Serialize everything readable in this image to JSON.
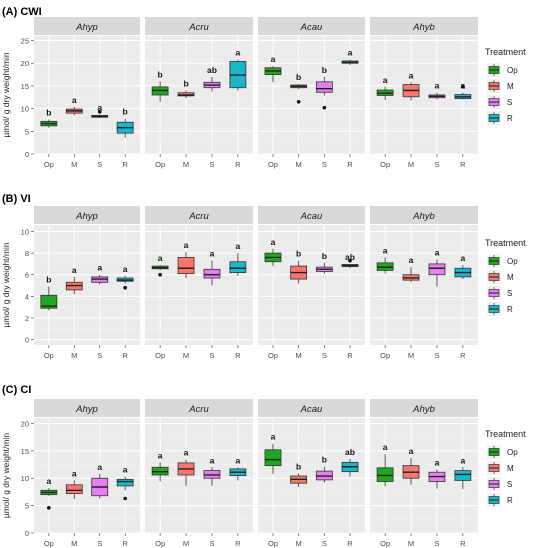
{
  "colors": {
    "panel_bg": "#ebebeb",
    "grid_major": "#ffffff",
    "strip_bg": "#d9d9d9",
    "Op": "#1fa81f",
    "M": "#f8766d",
    "S": "#e77ff0",
    "R": "#18b7c9"
  },
  "legend": {
    "title": "Treatment",
    "items": [
      {
        "key": "Op",
        "label": "Op"
      },
      {
        "key": "M",
        "label": "M"
      },
      {
        "key": "S",
        "label": "S"
      },
      {
        "key": "R",
        "label": "R"
      }
    ]
  },
  "chart_data": [
    {
      "type": "box",
      "title": "(A) CWI",
      "ylabel": "µmol/ g dry weight/min",
      "ylim": [
        0,
        26
      ],
      "yticks": [
        0,
        5,
        10,
        15,
        20,
        25
      ],
      "categories": [
        "Op",
        "M",
        "S",
        "R"
      ],
      "facets": [
        {
          "name": "Ahyp",
          "boxes": [
            {
              "min": 5.8,
              "q1": 6.2,
              "median": 6.7,
              "q3": 7.2,
              "max": 7.6,
              "outliers": [],
              "letter": "b"
            },
            {
              "min": 8.5,
              "q1": 9.0,
              "median": 9.5,
              "q3": 9.9,
              "max": 10.4,
              "outliers": [],
              "letter": "a"
            },
            {
              "min": 7.9,
              "q1": 8.1,
              "median": 8.3,
              "q3": 8.5,
              "max": 8.7,
              "outliers": [
                9.3
              ],
              "letter": "a"
            },
            {
              "min": 3.6,
              "q1": 4.6,
              "median": 5.8,
              "q3": 7.0,
              "max": 7.8,
              "outliers": [],
              "letter": "b"
            }
          ]
        },
        {
          "name": "Acru",
          "boxes": [
            {
              "min": 11.5,
              "q1": 13.0,
              "median": 14.0,
              "q3": 14.8,
              "max": 16.0,
              "outliers": [],
              "letter": "b"
            },
            {
              "min": 12.3,
              "q1": 12.8,
              "median": 13.0,
              "q3": 13.5,
              "max": 14.0,
              "outliers": [],
              "letter": "b"
            },
            {
              "min": 13.8,
              "q1": 14.6,
              "median": 15.2,
              "q3": 15.8,
              "max": 17.0,
              "outliers": [],
              "letter": "ab"
            },
            {
              "min": 14.0,
              "q1": 14.6,
              "median": 17.4,
              "q3": 20.4,
              "max": 20.8,
              "outliers": [],
              "letter": "a"
            }
          ]
        },
        {
          "name": "Acau",
          "boxes": [
            {
              "min": 15.8,
              "q1": 17.5,
              "median": 18.3,
              "q3": 19.0,
              "max": 19.4,
              "outliers": [],
              "letter": "a"
            },
            {
              "min": 14.3,
              "q1": 14.6,
              "median": 14.9,
              "q3": 15.2,
              "max": 15.4,
              "outliers": [
                11.5
              ],
              "letter": "b"
            },
            {
              "min": 12.9,
              "q1": 13.6,
              "median": 14.4,
              "q3": 15.9,
              "max": 17.0,
              "outliers": [
                10.2
              ],
              "letter": "b"
            },
            {
              "min": 19.6,
              "q1": 20.0,
              "median": 20.2,
              "q3": 20.5,
              "max": 20.8,
              "outliers": [],
              "letter": "a"
            }
          ]
        },
        {
          "name": "Ahyb",
          "boxes": [
            {
              "min": 11.9,
              "q1": 12.9,
              "median": 13.4,
              "q3": 14.1,
              "max": 14.8,
              "outliers": [],
              "letter": "a"
            },
            {
              "min": 11.8,
              "q1": 12.6,
              "median": 14.0,
              "q3": 15.3,
              "max": 15.8,
              "outliers": [],
              "letter": "a"
            },
            {
              "min": 12.0,
              "q1": 12.4,
              "median": 12.7,
              "q3": 13.0,
              "max": 13.5,
              "outliers": [],
              "letter": "a"
            },
            {
              "min": 12.0,
              "q1": 12.2,
              "median": 12.6,
              "q3": 13.1,
              "max": 13.5,
              "outliers": [
                14.8
              ],
              "letter": "a"
            }
          ]
        }
      ]
    },
    {
      "type": "box",
      "title": "(B) VI",
      "ylabel": "µmol/ g dry weight/min",
      "ylim": [
        -0.5,
        10.6
      ],
      "yticks": [
        0,
        2,
        4,
        6,
        8,
        10
      ],
      "categories": [
        "Op",
        "M",
        "S",
        "R"
      ],
      "facets": [
        {
          "name": "Ahyp",
          "boxes": [
            {
              "min": 2.7,
              "q1": 2.9,
              "median": 3.1,
              "q3": 4.1,
              "max": 4.9,
              "outliers": [],
              "letter": "b"
            },
            {
              "min": 4.2,
              "q1": 4.6,
              "median": 5.0,
              "q3": 5.3,
              "max": 5.8,
              "outliers": [],
              "letter": "a"
            },
            {
              "min": 5.1,
              "q1": 5.3,
              "median": 5.6,
              "q3": 5.8,
              "max": 6.0,
              "outliers": [],
              "letter": "a"
            },
            {
              "min": 5.2,
              "q1": 5.4,
              "median": 5.5,
              "q3": 5.7,
              "max": 5.9,
              "outliers": [
                4.8
              ],
              "letter": "a"
            }
          ]
        },
        {
          "name": "Acru",
          "boxes": [
            {
              "min": 6.4,
              "q1": 6.55,
              "median": 6.65,
              "q3": 6.8,
              "max": 6.9,
              "outliers": [
                6.0
              ],
              "letter": "a"
            },
            {
              "min": 5.7,
              "q1": 6.1,
              "median": 6.6,
              "q3": 7.6,
              "max": 8.1,
              "outliers": [],
              "letter": "a"
            },
            {
              "min": 5.0,
              "q1": 5.7,
              "median": 6.0,
              "q3": 6.5,
              "max": 7.3,
              "outliers": [],
              "letter": "a"
            },
            {
              "min": 5.9,
              "q1": 6.2,
              "median": 6.6,
              "q3": 7.2,
              "max": 8.0,
              "outliers": [],
              "letter": "a"
            }
          ]
        },
        {
          "name": "Acau",
          "boxes": [
            {
              "min": 6.8,
              "q1": 7.2,
              "median": 7.6,
              "q3": 8.0,
              "max": 8.4,
              "outliers": [],
              "letter": "a"
            },
            {
              "min": 5.2,
              "q1": 5.6,
              "median": 6.2,
              "q3": 6.8,
              "max": 7.3,
              "outliers": [],
              "letter": "b"
            },
            {
              "min": 6.1,
              "q1": 6.3,
              "median": 6.5,
              "q3": 6.7,
              "max": 7.1,
              "outliers": [],
              "letter": "b"
            },
            {
              "min": 6.6,
              "q1": 6.75,
              "median": 6.85,
              "q3": 6.95,
              "max": 7.0,
              "outliers": [
                7.3
              ],
              "letter": "ab"
            }
          ]
        },
        {
          "name": "Ahyb",
          "boxes": [
            {
              "min": 6.1,
              "q1": 6.4,
              "median": 6.7,
              "q3": 7.1,
              "max": 7.6,
              "outliers": [],
              "letter": "a"
            },
            {
              "min": 5.3,
              "q1": 5.5,
              "median": 5.7,
              "q3": 6.0,
              "max": 6.7,
              "outliers": [],
              "letter": "a"
            },
            {
              "min": 4.9,
              "q1": 6.0,
              "median": 6.6,
              "q3": 7.0,
              "max": 7.4,
              "outliers": [],
              "letter": "a"
            },
            {
              "min": 5.6,
              "q1": 5.8,
              "median": 6.2,
              "q3": 6.6,
              "max": 6.9,
              "outliers": [],
              "letter": "a"
            }
          ]
        }
      ]
    },
    {
      "type": "box",
      "title": "(C) CI",
      "ylabel": "µmol/ g dry weight/min",
      "ylim": [
        0,
        21
      ],
      "yticks": [
        0,
        5,
        10,
        15,
        20
      ],
      "categories": [
        "Op",
        "M",
        "S",
        "R"
      ],
      "facets": [
        {
          "name": "Ahyp",
          "boxes": [
            {
              "min": 6.8,
              "q1": 7.0,
              "median": 7.4,
              "q3": 7.8,
              "max": 8.2,
              "outliers": [
                4.6
              ],
              "letter": "a"
            },
            {
              "min": 6.2,
              "q1": 7.2,
              "median": 7.8,
              "q3": 8.8,
              "max": 9.6,
              "outliers": [],
              "letter": "a"
            },
            {
              "min": 6.3,
              "q1": 6.8,
              "median": 8.4,
              "q3": 10.0,
              "max": 10.8,
              "outliers": [],
              "letter": "a"
            },
            {
              "min": 7.8,
              "q1": 8.6,
              "median": 9.4,
              "q3": 9.8,
              "max": 10.3,
              "outliers": [
                6.3
              ],
              "letter": "a"
            }
          ]
        },
        {
          "name": "Acru",
          "boxes": [
            {
              "min": 9.4,
              "q1": 10.6,
              "median": 11.2,
              "q3": 12.0,
              "max": 12.9,
              "outliers": [],
              "letter": "a"
            },
            {
              "min": 8.6,
              "q1": 10.6,
              "median": 11.7,
              "q3": 12.8,
              "max": 13.4,
              "outliers": [],
              "letter": "a"
            },
            {
              "min": 8.6,
              "q1": 10.0,
              "median": 10.6,
              "q3": 11.4,
              "max": 12.0,
              "outliers": [],
              "letter": "a"
            },
            {
              "min": 9.6,
              "q1": 10.5,
              "median": 11.1,
              "q3": 11.7,
              "max": 12.0,
              "outliers": [],
              "letter": "a"
            }
          ]
        },
        {
          "name": "Acau",
          "boxes": [
            {
              "min": 10.8,
              "q1": 12.3,
              "median": 13.4,
              "q3": 15.2,
              "max": 16.3,
              "outliers": [],
              "letter": "a"
            },
            {
              "min": 8.4,
              "q1": 9.1,
              "median": 9.8,
              "q3": 10.4,
              "max": 10.9,
              "outliers": [],
              "letter": "b"
            },
            {
              "min": 9.2,
              "q1": 9.7,
              "median": 10.4,
              "q3": 11.3,
              "max": 12.1,
              "outliers": [],
              "letter": "b"
            },
            {
              "min": 10.3,
              "q1": 11.2,
              "median": 12.1,
              "q3": 12.9,
              "max": 13.5,
              "outliers": [],
              "letter": "ab"
            }
          ]
        },
        {
          "name": "Ahyb",
          "boxes": [
            {
              "min": 8.5,
              "q1": 9.4,
              "median": 10.5,
              "q3": 11.9,
              "max": 14.4,
              "outliers": [],
              "letter": "a"
            },
            {
              "min": 8.8,
              "q1": 10.0,
              "median": 11.1,
              "q3": 12.3,
              "max": 13.7,
              "outliers": [],
              "letter": "a"
            },
            {
              "min": 8.1,
              "q1": 9.4,
              "median": 10.3,
              "q3": 11.1,
              "max": 11.6,
              "outliers": [],
              "letter": "a"
            },
            {
              "min": 8.0,
              "q1": 9.6,
              "median": 10.7,
              "q3": 11.4,
              "max": 12.0,
              "outliers": [],
              "letter": "a"
            }
          ]
        }
      ]
    }
  ]
}
